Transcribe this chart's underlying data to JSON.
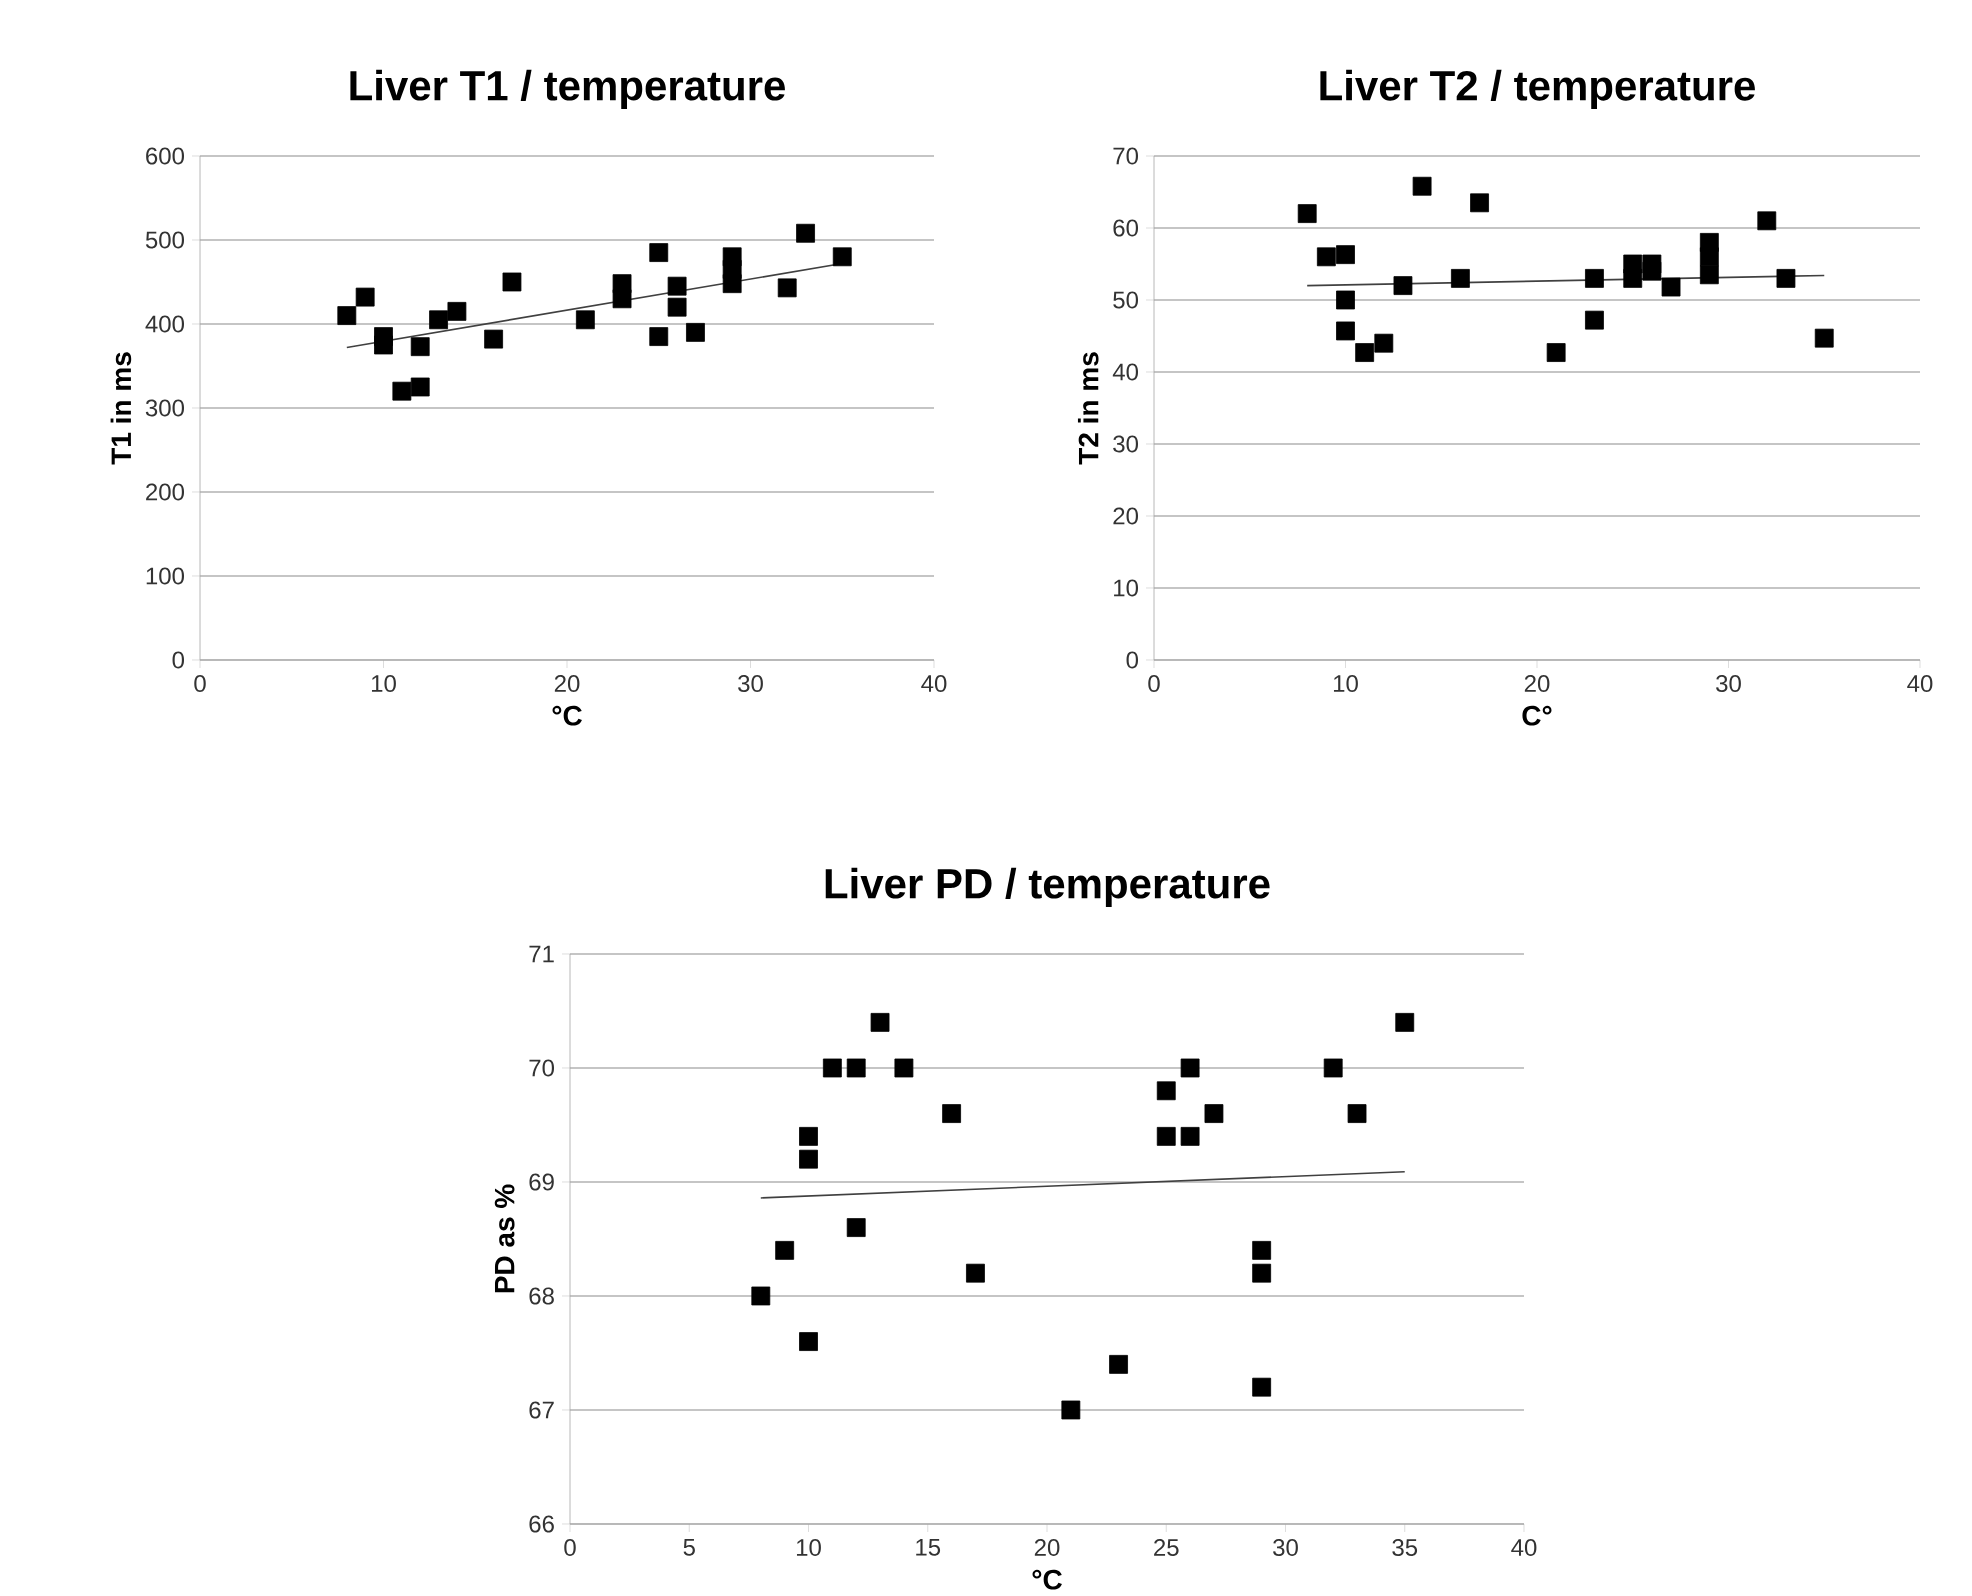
{
  "chart_data": [
    {
      "type": "scatter",
      "title": "Liver T1 / temperature",
      "xlabel": "°C",
      "ylabel": "T1 in ms",
      "xlim": [
        0,
        40
      ],
      "xticks": [
        0,
        10,
        20,
        30,
        40
      ],
      "ylim": [
        0,
        600
      ],
      "yticks": [
        0,
        100,
        200,
        300,
        400,
        500,
        600
      ],
      "grid": "y",
      "marker": "square",
      "series": [
        {
          "color": "#000000",
          "x": [
            8,
            9,
            10,
            10,
            11,
            12,
            12,
            13,
            14,
            16,
            17,
            21,
            23,
            23,
            25,
            25,
            26,
            26,
            27,
            29,
            29,
            29,
            32,
            33,
            35
          ],
          "values": [
            410,
            432,
            385,
            375,
            320,
            325,
            373,
            405,
            415,
            382,
            450,
            405,
            448,
            430,
            485,
            385,
            445,
            420,
            390,
            480,
            465,
            448,
            443,
            508,
            480
          ]
        },
        {
          "type": "line",
          "marker": "none",
          "color": "#404040",
          "x": [
            8,
            35
          ],
          "values": [
            372,
            472
          ]
        }
      ]
    },
    {
      "type": "scatter",
      "title": "Liver T2 / temperature",
      "xlabel": "C°",
      "ylabel": "T2 in ms",
      "xlim": [
        0,
        40
      ],
      "xticks": [
        0,
        10,
        20,
        30,
        40
      ],
      "ylim": [
        0,
        70
      ],
      "yticks": [
        0,
        10,
        20,
        30,
        40,
        50,
        60,
        70
      ],
      "grid": "y",
      "marker": "square",
      "series": [
        {
          "color": "#000000",
          "x": [
            8,
            9,
            10,
            10,
            10,
            11,
            12,
            13,
            14,
            16,
            17,
            21,
            23,
            23,
            25,
            25,
            26,
            26,
            27,
            29,
            29,
            29,
            32,
            33,
            35
          ],
          "values": [
            62,
            56,
            56.3,
            50,
            45.7,
            42.7,
            44,
            52,
            65.8,
            53,
            63.5,
            42.7,
            53,
            47.2,
            55,
            53,
            55,
            54,
            51.8,
            58,
            56,
            53.5,
            61,
            53,
            44.7
          ]
        },
        {
          "type": "line",
          "marker": "none",
          "color": "#404040",
          "x": [
            8,
            35
          ],
          "values": [
            52,
            53.4
          ]
        }
      ]
    },
    {
      "type": "scatter",
      "title": "Liver PD / temperature",
      "xlabel": "°C",
      "ylabel": "PD as %",
      "xlim": [
        0,
        40
      ],
      "xticks": [
        0,
        5,
        10,
        15,
        20,
        25,
        30,
        35,
        40
      ],
      "ylim": [
        66,
        71
      ],
      "yticks": [
        66,
        67,
        68,
        69,
        70,
        71
      ],
      "grid": "y",
      "marker": "square",
      "series": [
        {
          "color": "#000000",
          "x": [
            8,
            9,
            10,
            10,
            10,
            11,
            12,
            12,
            13,
            14,
            16,
            17,
            21,
            23,
            25,
            25,
            26,
            26,
            27,
            29,
            29,
            29,
            32,
            33,
            35
          ],
          "values": [
            68,
            68.4,
            69.4,
            69.2,
            67.6,
            70,
            70,
            68.6,
            70.4,
            70,
            69.6,
            68.2,
            67,
            67.4,
            69.8,
            69.4,
            70,
            69.4,
            69.6,
            68.4,
            68.2,
            67.2,
            70,
            69.6,
            70.4
          ]
        },
        {
          "type": "line",
          "marker": "none",
          "color": "#404040",
          "x": [
            8,
            35
          ],
          "values": [
            68.86,
            69.09
          ]
        }
      ]
    }
  ]
}
